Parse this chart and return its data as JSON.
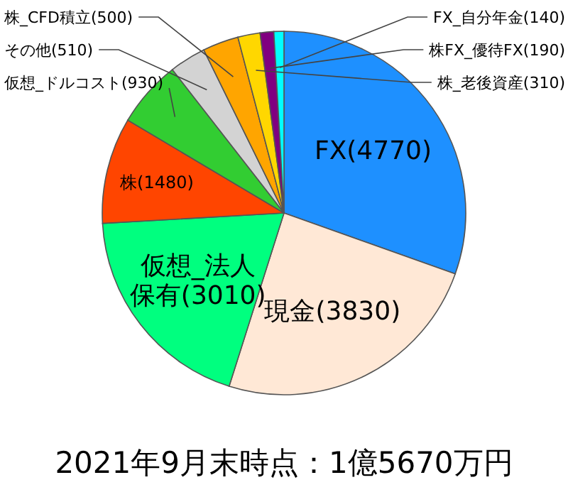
{
  "chart_data": {
    "type": "pie",
    "title": "2021年9月末時点：1億5670万円",
    "value_labels": [
      "(4770)",
      "(3830)",
      "(3010)",
      "(1480)",
      "(930)",
      "(510)",
      "(500)",
      "(310)",
      "(190)",
      "(140)"
    ],
    "categories": [
      "FX",
      "現金",
      "仮想_法人保有",
      "株",
      "仮想_ドルコスト",
      "その他",
      "株_CFD積立",
      "株_老後資産",
      "株FX_優待FX",
      "FX_自分年金"
    ],
    "values": [
      4770,
      3830,
      3010,
      1480,
      930,
      510,
      500,
      310,
      190,
      140
    ],
    "colors": [
      "#1e90ff",
      "#ffe8d6",
      "#00ff7f",
      "#ff4500",
      "#32cd32",
      "#d3d3d3",
      "#ffa500",
      "#ffd700",
      "#800080",
      "#00ffff"
    ]
  }
}
